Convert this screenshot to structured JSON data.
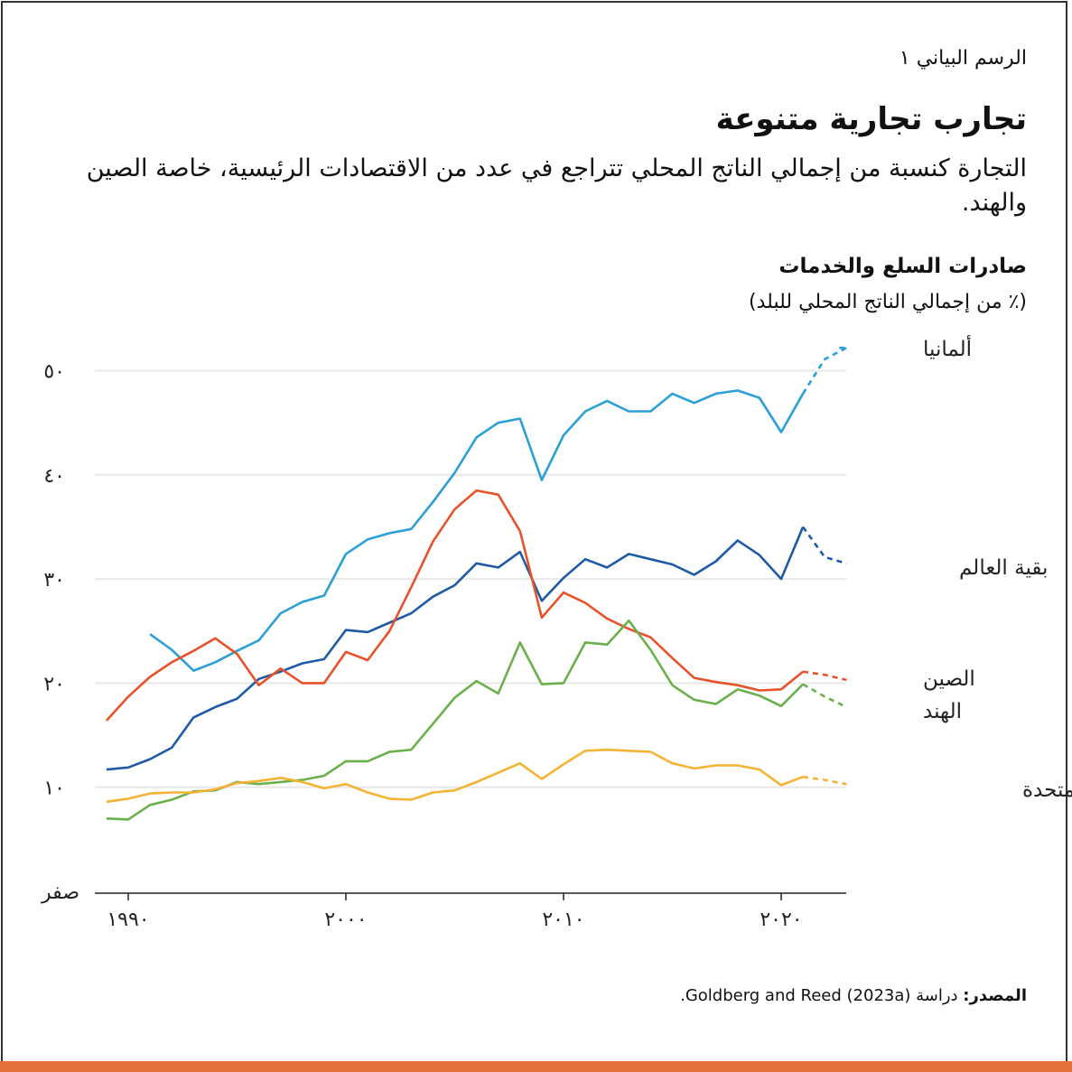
{
  "header": {
    "label": "الرسم البياني ١",
    "title": "تجارب تجارية متنوعة",
    "subtitle": "التجارة كنسبة من إجمالي الناتج المحلي تتراجع في عدد من الاقتصادات الرئيسية، خاصة الصين والهند."
  },
  "source": {
    "prefix": "المصدر:",
    "text": " دراسة Goldberg and Reed (2023a)."
  },
  "colors": {
    "accent_bar": "#e4703c"
  },
  "chart_data": {
    "type": "line",
    "title": "صادرات السلع والخدمات",
    "ylabel": "(٪ من إجمالي الناتج المحلي للبلد)",
    "xlabel": "",
    "xlim": [
      1988.9,
      2023
    ],
    "ylim": [
      0,
      50
    ],
    "grid": true,
    "legend": "inline-right",
    "x_ticks": [
      {
        "value": 1990,
        "label": "١٩٩٠"
      },
      {
        "value": 2000,
        "label": "٢٠٠٠"
      },
      {
        "value": 2010,
        "label": "٢٠١٠"
      },
      {
        "value": 2020,
        "label": "٢٠٢٠"
      }
    ],
    "y_ticks": [
      {
        "value": 0,
        "label": "صفر"
      },
      {
        "value": 10,
        "label": "١٠"
      },
      {
        "value": 20,
        "label": "٢٠"
      },
      {
        "value": 30,
        "label": "٣٠"
      },
      {
        "value": 40,
        "label": "٤٠"
      },
      {
        "value": 50,
        "label": "٥٠"
      }
    ],
    "projection_from": 2021,
    "series": [
      {
        "name": "ألمانيا",
        "color": "#2a9fd8",
        "start": 1991,
        "values": [
          24.7,
          23.2,
          21.2,
          22.0,
          23.1,
          24.1,
          26.7,
          27.8,
          28.4,
          32.4,
          33.8,
          34.4,
          34.8,
          37.4,
          40.2,
          43.6,
          45.0,
          45.4,
          39.5,
          43.8,
          46.1,
          47.1,
          46.1,
          46.1,
          47.8,
          46.9,
          47.8,
          48.1,
          47.4,
          44.1,
          47.8,
          51.1,
          52.2
        ]
      },
      {
        "name": "بقية العالم",
        "color": "#1f5aa6",
        "start": 1989,
        "values": [
          11.7,
          11.9,
          12.7,
          13.8,
          16.7,
          17.7,
          18.5,
          20.4,
          21.1,
          21.9,
          22.3,
          25.1,
          24.9,
          25.8,
          26.7,
          28.3,
          29.4,
          31.5,
          31.1,
          32.6,
          27.9,
          30.1,
          31.9,
          31.1,
          32.4,
          31.9,
          31.4,
          30.4,
          31.7,
          33.7,
          32.3,
          30.0,
          35.0,
          32.1,
          31.5
        ]
      },
      {
        "name": "الصين",
        "color": "#e8522a",
        "start": 1989,
        "values": [
          16.4,
          18.7,
          20.6,
          22.0,
          23.1,
          24.3,
          22.8,
          19.8,
          21.4,
          20.0,
          20.0,
          23.0,
          22.2,
          25.0,
          29.2,
          33.6,
          36.7,
          38.5,
          38.1,
          34.6,
          26.3,
          28.7,
          27.7,
          26.2,
          25.2,
          24.4,
          22.4,
          20.5,
          20.1,
          19.8,
          19.3,
          19.4,
          21.1,
          20.8,
          20.3
        ]
      },
      {
        "name": "الهند",
        "color": "#6ab04c",
        "start": 1989,
        "values": [
          7.0,
          6.9,
          8.3,
          8.8,
          9.6,
          9.7,
          10.5,
          10.3,
          10.5,
          10.7,
          11.1,
          12.5,
          12.5,
          13.4,
          13.6,
          16.1,
          18.6,
          20.2,
          19.0,
          23.9,
          19.9,
          20.0,
          23.9,
          23.7,
          26.0,
          23.2,
          19.8,
          18.4,
          18.0,
          19.4,
          18.8,
          17.8,
          19.9,
          18.7,
          17.7
        ]
      },
      {
        "name": "الولايات المتحدة",
        "color": "#f5b335",
        "start": 1989,
        "values": [
          8.6,
          8.9,
          9.4,
          9.5,
          9.5,
          9.8,
          10.4,
          10.6,
          10.9,
          10.5,
          9.9,
          10.3,
          9.5,
          8.9,
          8.8,
          9.5,
          9.7,
          10.5,
          11.4,
          12.3,
          10.8,
          12.2,
          13.5,
          13.6,
          13.5,
          13.4,
          12.3,
          11.8,
          12.1,
          12.1,
          11.7,
          10.2,
          11.0,
          10.7,
          10.3
        ]
      }
    ]
  }
}
